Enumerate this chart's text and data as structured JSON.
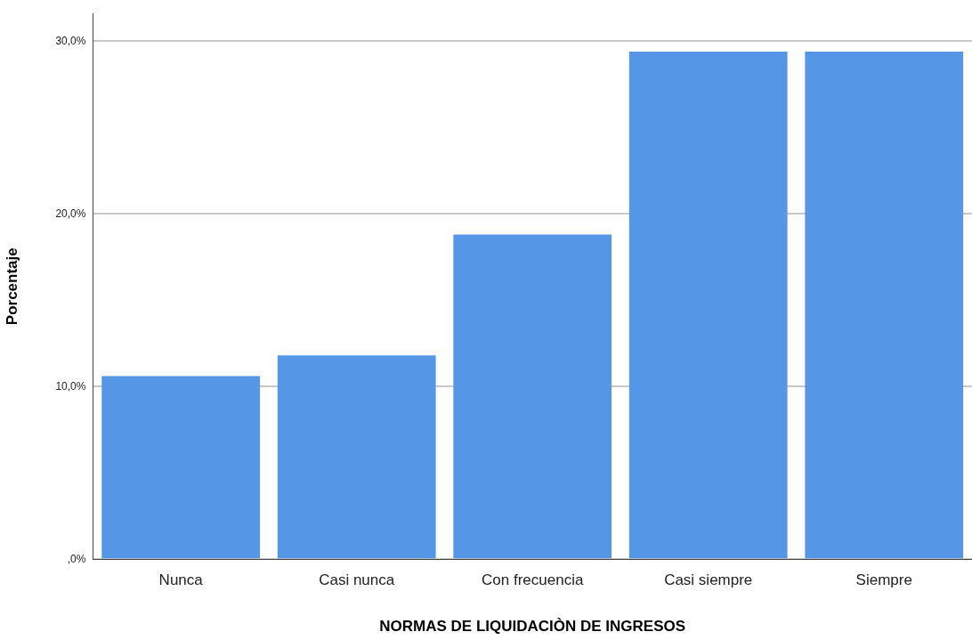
{
  "chart_data": {
    "type": "bar",
    "xlabel": "NORMAS DE LIQUIDACIÒN DE INGRESOS",
    "ylabel": "Porcentaje",
    "categories": [
      "Nunca",
      "Casi nunca",
      "Con frecuencia",
      "Casi siempre",
      "Siempre"
    ],
    "values": [
      10.6,
      11.8,
      18.8,
      29.4,
      29.4
    ],
    "color": "#5596e6",
    "ylim": [
      0,
      31.6
    ],
    "yticks": [
      {
        "value": 0,
        "label": ",0%"
      },
      {
        "value": 10,
        "label": "10,0%"
      },
      {
        "value": 20,
        "label": "20,0%"
      },
      {
        "value": 30,
        "label": "30,0%"
      }
    ],
    "grid": "y",
    "legend": false
  }
}
